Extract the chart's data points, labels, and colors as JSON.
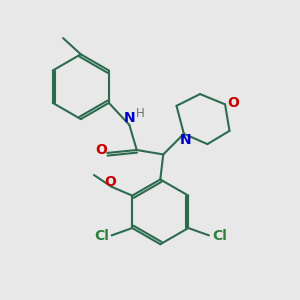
{
  "bg_color": "#e8e8e8",
  "bond_color": "#2d6b4f",
  "N_color": "#0000cc",
  "O_color": "#cc0000",
  "Cl_color": "#2d8040",
  "H_color": "#707070",
  "lw": 1.5,
  "fs": 10,
  "fs_small": 8.5,
  "xlim": [
    0,
    10
  ],
  "ylim": [
    0,
    10
  ]
}
